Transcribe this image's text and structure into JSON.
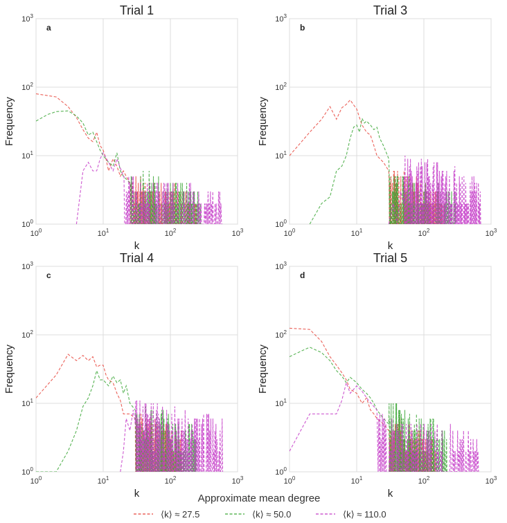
{
  "figure": {
    "legend_title": "Approximate mean  degree",
    "legend_entries": [
      {
        "label": "⟨k⟩ ≈ 27.5",
        "color": "#e8453c"
      },
      {
        "label": "⟨k⟩ ≈ 50.0",
        "color": "#3aa635"
      },
      {
        "label": "⟨k⟩ ≈ 110.0",
        "color": "#c43bc8"
      }
    ]
  },
  "chart_data": [
    {
      "type": "line",
      "panel_label": "a",
      "title": "Trial 1",
      "xlabel": "k",
      "ylabel": "Frequency",
      "xscale": "log",
      "yscale": "log",
      "xlim": [
        1,
        1000
      ],
      "ylim": [
        1,
        1000
      ],
      "xticks": [
        "10⁰",
        "10¹",
        "10²",
        "10³"
      ],
      "yticks": [
        "10⁰",
        "10¹",
        "10²",
        "10³"
      ],
      "series": [
        {
          "name": "⟨k⟩ ≈ 27.5",
          "color": "#e8453c",
          "x": [
            1,
            2,
            3,
            4,
            5,
            6,
            7,
            8,
            9,
            10,
            11,
            12,
            14,
            16,
            18,
            20,
            22,
            25
          ],
          "y": [
            80,
            72,
            52,
            36,
            24,
            18,
            16,
            22,
            14,
            12,
            9,
            6,
            9,
            7,
            5,
            6,
            5,
            4
          ],
          "tail": {
            "from": 25,
            "to": 250,
            "min": 1,
            "max": 5
          }
        },
        {
          "name": "⟨k⟩ ≈ 50.0",
          "color": "#3aa635",
          "x": [
            1,
            1.5,
            2,
            3,
            4,
            5,
            6,
            7,
            8,
            9,
            10,
            12,
            14,
            16,
            18,
            20,
            25
          ],
          "y": [
            32,
            40,
            44,
            45,
            38,
            30,
            20,
            22,
            16,
            12,
            10,
            8,
            7,
            11,
            6,
            5,
            4
          ],
          "tail": {
            "from": 25,
            "to": 300,
            "min": 1,
            "max": 6
          }
        },
        {
          "name": "⟨k⟩ ≈ 110.0",
          "color": "#c43bc8",
          "x": [
            4,
            5,
            6,
            7,
            8,
            9,
            10,
            12,
            14,
            16,
            20
          ],
          "y": [
            1,
            6,
            8,
            6,
            6,
            9,
            11,
            8,
            6,
            9,
            5
          ],
          "tail": {
            "from": 20,
            "to": 600,
            "min": 1,
            "max": 5
          }
        }
      ]
    },
    {
      "type": "line",
      "panel_label": "b",
      "title": "Trial 3",
      "xlabel": "k",
      "ylabel": "Frequency",
      "xscale": "log",
      "yscale": "log",
      "xlim": [
        1,
        1000
      ],
      "ylim": [
        1,
        1000
      ],
      "xticks": [
        "10⁰",
        "10¹",
        "10²",
        "10³"
      ],
      "yticks": [
        "10⁰",
        "10¹",
        "10²",
        "10³"
      ],
      "series": [
        {
          "name": "⟨k⟩ ≈ 27.5",
          "color": "#e8453c",
          "x": [
            1,
            2,
            3,
            4,
            5,
            6,
            7,
            8,
            9,
            10,
            11,
            12,
            14,
            16,
            18,
            20,
            25,
            30
          ],
          "y": [
            10,
            22,
            34,
            52,
            34,
            50,
            56,
            65,
            55,
            48,
            36,
            28,
            22,
            20,
            14,
            10,
            8,
            6
          ],
          "tail": {
            "from": 30,
            "to": 200,
            "min": 1,
            "max": 6
          }
        },
        {
          "name": "⟨k⟩ ≈ 50.0",
          "color": "#3aa635",
          "x": [
            2,
            3,
            4,
            5,
            6,
            7,
            8,
            9,
            10,
            11,
            12,
            13,
            14,
            16,
            18,
            20,
            22,
            25,
            30
          ],
          "y": [
            1,
            2,
            2.5,
            6,
            7,
            10,
            18,
            26,
            28,
            22,
            35,
            30,
            32,
            28,
            24,
            26,
            18,
            14,
            9
          ],
          "tail": {
            "from": 30,
            "to": 300,
            "min": 1,
            "max": 6
          }
        },
        {
          "name": "⟨k⟩ ≈ 110.0",
          "color": "#c43bc8",
          "x": [
            30,
            35,
            40,
            45,
            50
          ],
          "y": [
            1,
            2,
            1,
            3,
            2
          ],
          "tail": {
            "from": 50,
            "to": 700,
            "min": 1,
            "max": 10
          }
        }
      ]
    },
    {
      "type": "line",
      "panel_label": "c",
      "title": "Trial 4",
      "xlabel": "k",
      "ylabel": "Frequency",
      "xscale": "log",
      "yscale": "log",
      "xlim": [
        1,
        1000
      ],
      "ylim": [
        1,
        1000
      ],
      "xticks": [
        "10⁰",
        "10¹",
        "10²",
        "10³"
      ],
      "yticks": [
        "10⁰",
        "10¹",
        "10²",
        "10³"
      ],
      "series": [
        {
          "name": "⟨k⟩ ≈ 27.5",
          "color": "#e8453c",
          "x": [
            1,
            2,
            3,
            4,
            5,
            6,
            7,
            8,
            9,
            10,
            11,
            12,
            14,
            16,
            18,
            20,
            25,
            30
          ],
          "y": [
            12,
            26,
            52,
            42,
            50,
            42,
            48,
            34,
            36,
            36,
            26,
            22,
            20,
            14,
            11,
            7,
            7,
            6
          ],
          "tail": {
            "from": 30,
            "to": 150,
            "min": 1,
            "max": 7
          }
        },
        {
          "name": "⟨k⟩ ≈ 50.0",
          "color": "#3aa635",
          "x": [
            1,
            2,
            3,
            4,
            5,
            6,
            7,
            8,
            9,
            10,
            12,
            14,
            16,
            18,
            20,
            22,
            25,
            30
          ],
          "y": [
            1,
            1,
            2,
            4,
            9,
            12,
            18,
            30,
            22,
            22,
            18,
            25,
            20,
            22,
            14,
            18,
            10,
            8
          ],
          "tail": {
            "from": 30,
            "to": 250,
            "min": 1,
            "max": 10
          }
        },
        {
          "name": "⟨k⟩ ≈ 110.0",
          "color": "#c43bc8",
          "x": [
            18,
            20,
            22,
            25,
            28,
            30
          ],
          "y": [
            1,
            2,
            6,
            4,
            8,
            5
          ],
          "tail": {
            "from": 30,
            "to": 600,
            "min": 1,
            "max": 12
          }
        }
      ]
    },
    {
      "type": "line",
      "panel_label": "d",
      "title": "Trial 5",
      "xlabel": "k",
      "ylabel": "Frequency",
      "xscale": "log",
      "yscale": "log",
      "xlim": [
        1,
        1000
      ],
      "ylim": [
        1,
        1000
      ],
      "xticks": [
        "10⁰",
        "10¹",
        "10²",
        "10³"
      ],
      "yticks": [
        "10⁰",
        "10¹",
        "10²",
        "10³"
      ],
      "series": [
        {
          "name": "⟨k⟩ ≈ 27.5",
          "color": "#e8453c",
          "x": [
            1,
            2,
            3,
            4,
            5,
            6,
            7,
            8,
            10,
            12,
            14,
            16,
            18,
            20,
            25,
            30
          ],
          "y": [
            125,
            120,
            80,
            48,
            36,
            28,
            22,
            16,
            14,
            10,
            12,
            8,
            7,
            6,
            5,
            4
          ],
          "tail": {
            "from": 30,
            "to": 150,
            "min": 1,
            "max": 6
          }
        },
        {
          "name": "⟨k⟩ ≈ 50.0",
          "color": "#3aa635",
          "x": [
            1,
            1.5,
            2,
            3,
            4,
            5,
            6,
            7,
            8,
            10,
            12,
            14,
            16,
            18,
            20,
            25,
            30
          ],
          "y": [
            48,
            58,
            66,
            55,
            42,
            30,
            25,
            20,
            24,
            20,
            16,
            14,
            12,
            10,
            8,
            6,
            5
          ],
          "tail": {
            "from": 30,
            "to": 220,
            "min": 1,
            "max": 10
          }
        },
        {
          "name": "⟨k⟩ ≈ 110.0",
          "color": "#c43bc8",
          "x": [
            1,
            2,
            3,
            4,
            5,
            6,
            7,
            8,
            10,
            12,
            15,
            20
          ],
          "y": [
            2,
            7,
            7,
            7,
            7,
            11,
            20,
            14,
            18,
            15,
            11,
            8
          ],
          "tail": {
            "from": 20,
            "to": 650,
            "min": 1,
            "max": 7
          }
        }
      ]
    }
  ]
}
